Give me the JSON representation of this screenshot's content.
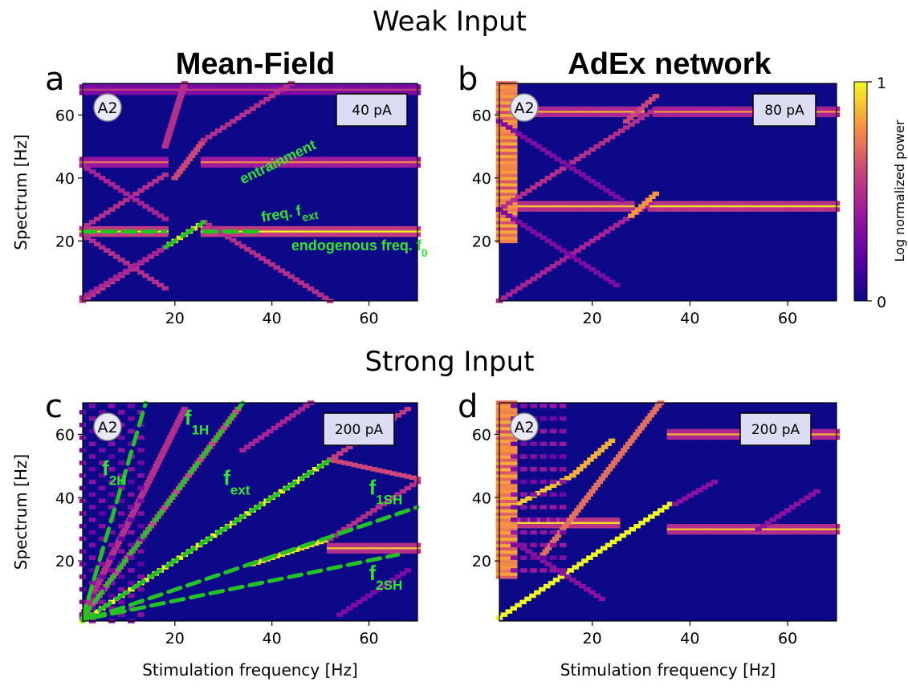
{
  "figure": {
    "section_titles": [
      "Weak Input",
      "Strong Input"
    ],
    "column_titles": [
      "Mean-Field",
      "AdEx network"
    ]
  },
  "colorbar": {
    "label": "Log normalized power",
    "min_label": "0",
    "max_label": "1",
    "colormap": "plasma",
    "range": [
      0,
      1
    ]
  },
  "colors": {
    "background": "#0d0887",
    "annotation": "#2ee82e",
    "dashed_guides": "#22c322"
  },
  "chart_data": [
    {
      "type": "heatmap",
      "panel_label": "a",
      "model": "Mean-Field",
      "regime": "Weak Input",
      "badge": "A2",
      "input_amplitude": "40 pA",
      "ylabel": "Spectrum [Hz]",
      "xlabel": "",
      "xlim": [
        1,
        70
      ],
      "ylim": [
        1,
        70
      ],
      "xticks": [
        20,
        40,
        60
      ],
      "yticks": [
        20,
        40,
        60
      ],
      "annotations": [
        {
          "text": "entrainment",
          "x": 34,
          "y": 38
        },
        {
          "text": "freq. f",
          "sub": "ext",
          "x": 38,
          "y": 26
        },
        {
          "text": "endogenous freq. f",
          "sub": "0",
          "x": 44,
          "y": 17
        }
      ],
      "features": [
        {
          "kind": "band",
          "x0": 1,
          "x1": 18,
          "y": 23,
          "power": 1.0
        },
        {
          "kind": "band",
          "x0": 26,
          "x1": 70,
          "y": 23,
          "power": 1.0
        },
        {
          "kind": "band",
          "x0": 1,
          "x1": 18,
          "y": 45,
          "power": 0.7
        },
        {
          "kind": "band",
          "x0": 26,
          "x1": 70,
          "y": 45,
          "power": 0.75
        },
        {
          "kind": "band",
          "x0": 1,
          "x1": 70,
          "y": 68,
          "power": 0.55
        },
        {
          "kind": "line",
          "x0": 18,
          "x1": 26,
          "y0": 18,
          "y1": 26,
          "power": 0.95
        },
        {
          "kind": "line",
          "x0": 26,
          "x1": 52,
          "y0": 26,
          "y1": 1,
          "power": 0.5
        },
        {
          "kind": "line",
          "x0": 20,
          "x1": 26,
          "y0": 40,
          "y1": 52,
          "power": 0.6
        },
        {
          "kind": "line",
          "x0": 26,
          "x1": 44,
          "y0": 52,
          "y1": 70,
          "power": 0.5
        },
        {
          "kind": "line",
          "x0": 1,
          "x1": 18,
          "y0": 1,
          "y1": 18,
          "power": 0.55
        },
        {
          "kind": "line",
          "x0": 1,
          "x1": 18,
          "y0": 24,
          "y1": 41,
          "power": 0.5
        },
        {
          "kind": "line",
          "x0": 1,
          "x1": 18,
          "y0": 22,
          "y1": 5,
          "power": 0.5
        },
        {
          "kind": "line",
          "x0": 1,
          "x1": 18,
          "y0": 44,
          "y1": 27,
          "power": 0.45
        },
        {
          "kind": "line",
          "x0": 1,
          "x1": 18,
          "y0": 2,
          "y1": 18,
          "power": 0.45
        },
        {
          "kind": "line",
          "x0": 18,
          "x1": 22,
          "y0": 50,
          "y1": 70,
          "power": 0.5
        }
      ],
      "guides": [
        {
          "x0": 1,
          "x1": 18,
          "y0": 23,
          "y1": 23
        },
        {
          "x0": 18,
          "x1": 26,
          "y0": 18,
          "y1": 26
        },
        {
          "x0": 26,
          "x1": 38,
          "y0": 23,
          "y1": 23
        }
      ]
    },
    {
      "type": "heatmap",
      "panel_label": "b",
      "model": "AdEx network",
      "regime": "Weak Input",
      "badge": "A2",
      "input_amplitude": "80 pA",
      "ylabel": "",
      "xlabel": "",
      "xlim": [
        1,
        70
      ],
      "ylim": [
        1,
        70
      ],
      "xticks": [
        20,
        40,
        60
      ],
      "yticks": [
        20,
        40,
        60
      ],
      "annotations": [],
      "features": [
        {
          "kind": "band",
          "x0": 1,
          "x1": 30,
          "y": 61,
          "power": 0.85
        },
        {
          "kind": "band",
          "x0": 33,
          "x1": 70,
          "y": 61,
          "power": 0.8
        },
        {
          "kind": "band",
          "x0": 1,
          "x1": 28,
          "y": 31,
          "power": 0.9
        },
        {
          "kind": "band",
          "x0": 32,
          "x1": 70,
          "y": 31,
          "power": 0.95
        },
        {
          "kind": "blob",
          "x0": 1,
          "x1": 4,
          "y0": 20,
          "y1": 70,
          "power": 0.85
        },
        {
          "kind": "line",
          "x0": 1,
          "x1": 32,
          "y0": 1,
          "y1": 32,
          "power": 0.45
        },
        {
          "kind": "line",
          "x0": 1,
          "x1": 32,
          "y0": 30,
          "y1": 61,
          "power": 0.5
        },
        {
          "kind": "line",
          "x0": 28,
          "x1": 33,
          "y0": 28,
          "y1": 35,
          "power": 0.8
        },
        {
          "kind": "line",
          "x0": 1,
          "x1": 26,
          "y0": 58,
          "y1": 33,
          "power": 0.3
        },
        {
          "kind": "line",
          "x0": 1,
          "x1": 25,
          "y0": 30,
          "y1": 6,
          "power": 0.3
        },
        {
          "kind": "line",
          "x0": 27,
          "x1": 33,
          "y0": 58,
          "y1": 66,
          "power": 0.6
        }
      ],
      "guides": []
    },
    {
      "type": "heatmap",
      "panel_label": "c",
      "model": "Mean-Field",
      "regime": "Strong Input",
      "badge": "A2",
      "input_amplitude": "200 pA",
      "ylabel": "Spectrum [Hz]",
      "xlabel": "Stimulation frequency [Hz]",
      "xlim": [
        1,
        70
      ],
      "ylim": [
        1,
        70
      ],
      "xticks": [
        20,
        40,
        60
      ],
      "yticks": [
        20,
        40,
        60
      ],
      "annotations": [
        {
          "text": "f",
          "sub": "1H",
          "x": 22,
          "y": 63
        },
        {
          "text": "f",
          "sub": "2H",
          "x": 5,
          "y": 47
        },
        {
          "text": "f",
          "sub": "ext",
          "x": 30,
          "y": 44
        },
        {
          "text": "f",
          "sub": "1SH",
          "x": 60,
          "y": 41
        },
        {
          "text": "f",
          "sub": "2SH",
          "x": 60,
          "y": 14
        }
      ],
      "features": [
        {
          "kind": "line",
          "x0": 1,
          "x1": 52,
          "y0": 1,
          "y1": 52,
          "power": 1.0
        },
        {
          "kind": "line",
          "x0": 52,
          "x1": 68,
          "y0": 52,
          "y1": 68,
          "power": 0.55
        },
        {
          "kind": "line",
          "x0": 1,
          "x1": 33,
          "y0": 2,
          "y1": 68,
          "power": 0.6
        },
        {
          "kind": "line",
          "x0": 1,
          "x1": 22,
          "y0": 3,
          "y1": 68,
          "power": 0.5
        },
        {
          "kind": "line",
          "x0": 36,
          "x1": 52,
          "y0": 19,
          "y1": 27,
          "power": 0.95
        },
        {
          "kind": "band",
          "x0": 52,
          "x1": 70,
          "y": 24,
          "power": 0.9
        },
        {
          "kind": "line",
          "x0": 52,
          "x1": 70,
          "y0": 27,
          "y1": 45,
          "power": 0.5
        },
        {
          "kind": "line",
          "x0": 52,
          "x1": 70,
          "y0": 52,
          "y1": 46,
          "power": 0.6
        },
        {
          "kind": "line",
          "x0": 34,
          "x1": 48,
          "y0": 55,
          "y1": 70,
          "power": 0.45
        },
        {
          "kind": "line",
          "x0": 54,
          "x1": 68,
          "y0": 3,
          "y1": 17,
          "power": 0.3
        },
        {
          "kind": "checker",
          "x0": 1,
          "x1": 14,
          "y0": 1,
          "y1": 70,
          "power": 0.35
        }
      ],
      "guides": [
        {
          "x0": 1,
          "x1": 34,
          "y0": 2,
          "y1": 70
        },
        {
          "x0": 1,
          "x1": 14,
          "y0": 2,
          "y1": 70
        },
        {
          "x0": 1,
          "x1": 52,
          "y0": 1,
          "y1": 52
        },
        {
          "x0": 3,
          "x1": 70,
          "y0": 2,
          "y1": 37
        },
        {
          "x0": 3,
          "x1": 66,
          "y0": 2,
          "y1": 22
        }
      ]
    },
    {
      "type": "heatmap",
      "panel_label": "d",
      "model": "AdEx network",
      "regime": "Strong Input",
      "badge": "A2",
      "input_amplitude": "200 pA",
      "ylabel": "",
      "xlabel": "Stimulation frequency [Hz]",
      "xlim": [
        1,
        70
      ],
      "ylim": [
        1,
        70
      ],
      "xticks": [
        20,
        40,
        60
      ],
      "yticks": [
        20,
        40,
        60
      ],
      "annotations": [],
      "features": [
        {
          "kind": "line",
          "x0": 1,
          "x1": 36,
          "y0": 2,
          "y1": 38,
          "power": 1.0
        },
        {
          "kind": "line",
          "x0": 37,
          "x1": 45,
          "y0": 38,
          "y1": 45,
          "power": 0.35
        },
        {
          "kind": "band",
          "x0": 1,
          "x1": 25,
          "y": 32,
          "power": 0.95
        },
        {
          "kind": "band",
          "x0": 36,
          "x1": 70,
          "y": 30,
          "power": 0.9
        },
        {
          "kind": "band",
          "x0": 36,
          "x1": 70,
          "y": 60,
          "power": 0.85
        },
        {
          "kind": "line",
          "x0": 1,
          "x1": 16,
          "y0": 35,
          "y1": 47,
          "power": 0.9
        },
        {
          "kind": "line",
          "x0": 16,
          "x1": 24,
          "y0": 47,
          "y1": 58,
          "power": 0.85
        },
        {
          "kind": "line",
          "x0": 10,
          "x1": 34,
          "y0": 22,
          "y1": 70,
          "power": 0.7
        },
        {
          "kind": "line",
          "x0": 1,
          "x1": 22,
          "y0": 29,
          "y1": 8,
          "power": 0.35
        },
        {
          "kind": "line",
          "x0": 54,
          "x1": 66,
          "y0": 30,
          "y1": 42,
          "power": 0.35
        },
        {
          "kind": "blob",
          "x0": 1,
          "x1": 4,
          "y0": 15,
          "y1": 70,
          "power": 0.85
        },
        {
          "kind": "checker",
          "x0": 4,
          "x1": 14,
          "y0": 15,
          "y1": 70,
          "power": 0.4
        }
      ],
      "guides": []
    }
  ]
}
